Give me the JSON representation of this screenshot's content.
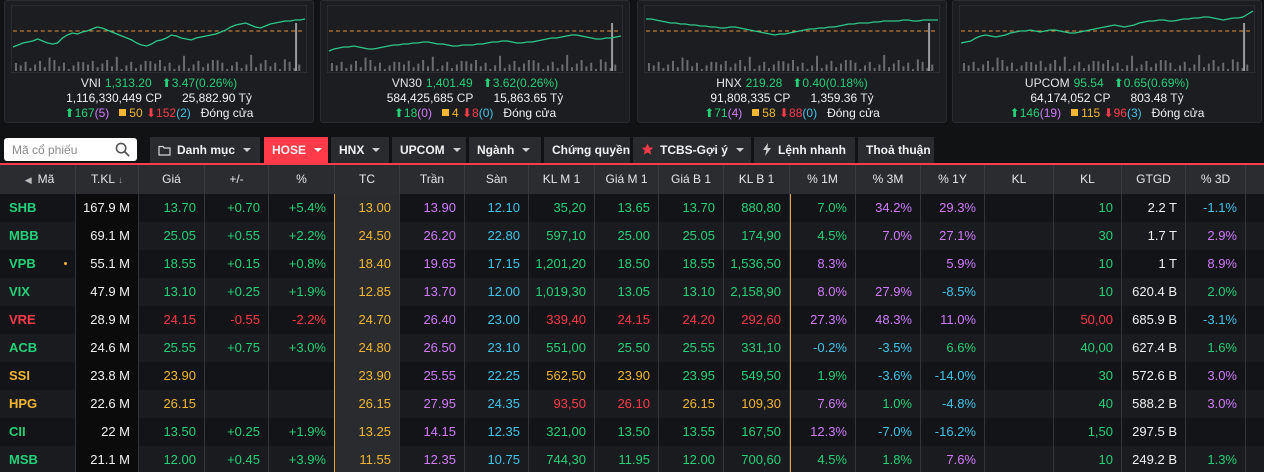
{
  "indexes": [
    {
      "name": "VNI",
      "value": "1,313.20",
      "change": "3.47",
      "pct": "(0.26%)",
      "dir": "up",
      "volume": "1,116,330,449",
      "vol_unit": "CP",
      "turnover": "25,882.90",
      "turn_unit": "Tỷ",
      "up": "167",
      "ceil_up": "(5)",
      "ref": "50",
      "down": "152",
      "floor_down": "(2)",
      "status": "Đóng cửa"
    },
    {
      "name": "VN30",
      "value": "1,401.49",
      "change": "3.62",
      "pct": "(0.26%)",
      "dir": "up",
      "volume": "584,425,685",
      "vol_unit": "CP",
      "turnover": "15,863.65",
      "turn_unit": "Tỷ",
      "up": "18",
      "ceil_up": "(0)",
      "ref": "4",
      "down": "8",
      "floor_down": "(0)",
      "status": "Đóng cửa"
    },
    {
      "name": "HNX",
      "value": "219.28",
      "change": "0.40",
      "pct": "(0.18%)",
      "dir": "up",
      "volume": "91,808,335",
      "vol_unit": "CP",
      "turnover": "1,359.36",
      "turn_unit": "Tỷ",
      "up": "71",
      "ceil_up": "(4)",
      "ref": "58",
      "down": "88",
      "floor_down": "(0)",
      "status": "Đóng cửa"
    },
    {
      "name": "UPCOM",
      "value": "95.54",
      "change": "0.65",
      "pct": "(0.69%)",
      "dir": "up",
      "volume": "64,174,052",
      "vol_unit": "CP",
      "turnover": "803.48",
      "turn_unit": "Tỷ",
      "up": "146",
      "ceil_up": "(19)",
      "ref": "115",
      "down": "96",
      "floor_down": "(3)",
      "status": "Đóng cửa"
    }
  ],
  "search": {
    "placeholder": "Mã cổ phiếu"
  },
  "tabs": [
    {
      "label": "Danh mục",
      "icon": "folder-icon",
      "caret": true
    },
    {
      "label": "HOSE",
      "active": true,
      "caret": true
    },
    {
      "label": "HNX",
      "caret": true
    },
    {
      "label": "UPCOM",
      "caret": true
    },
    {
      "label": "Ngành",
      "caret": true
    },
    {
      "label": "Chứng quyền",
      "caret": false
    },
    {
      "label": "TCBS-Gợi ý",
      "icon": "star-icon",
      "caret": true
    },
    {
      "label": "Lệnh nhanh",
      "icon": "lightning-icon",
      "caret": false
    },
    {
      "label": "Thoả thuận",
      "caret": false
    }
  ],
  "table": {
    "headers": [
      "Mã",
      "T.KL",
      "Giá",
      "+/-",
      "%",
      "TC",
      "Trần",
      "Sàn",
      "KL M 1",
      "Giá M 1",
      "Giá B 1",
      "KL B 1",
      "% 1M",
      "% 3M",
      "% 1Y",
      "KL",
      "KL",
      "GTGD",
      "% 3D"
    ],
    "rows": [
      {
        "sym": "SHB",
        "tkl": "167.9 M",
        "price": "13.70",
        "chg": "+0.70",
        "pct": "+5.4%",
        "tc": "13.00",
        "tran": "13.90",
        "san": "12.10",
        "klm1": "35,20",
        "giam1": "13.65",
        "giab1": "13.70",
        "klb1": "880,80",
        "p1m": "7.0%",
        "p3m": "34.2%",
        "p1y": "29.3%",
        "kl1": "",
        "kl2": "10",
        "gtgd": "2.2 T",
        "p3d": "-1.1%",
        "color": "green",
        "p1mc": "green",
        "p3mc": "ceil",
        "p1yc": "ceil",
        "p3dc": "floor"
      },
      {
        "sym": "MBB",
        "tkl": "69.1 M",
        "price": "25.05",
        "chg": "+0.55",
        "pct": "+2.2%",
        "tc": "24.50",
        "tran": "26.20",
        "san": "22.80",
        "klm1": "597,10",
        "giam1": "25.00",
        "giab1": "25.05",
        "klb1": "174,90",
        "p1m": "4.5%",
        "p3m": "7.0%",
        "p1y": "27.1%",
        "kl1": "",
        "kl2": "30",
        "gtgd": "1.7 T",
        "p3d": "2.9%",
        "color": "green",
        "p1mc": "green",
        "p3mc": "ceil",
        "p1yc": "ceil",
        "p3dc": "ceil"
      },
      {
        "sym": "VPB",
        "tkl": "55.1 M",
        "price": "18.55",
        "chg": "+0.15",
        "pct": "+0.8%",
        "tc": "18.40",
        "tran": "19.65",
        "san": "17.15",
        "klm1": "1,201,20",
        "giam1": "18.50",
        "giab1": "18.55",
        "klb1": "1,536,50",
        "p1m": "8.3%",
        "p3m": "",
        "p1y": "5.9%",
        "kl1": "",
        "kl2": "10",
        "gtgd": "1 T",
        "p3d": "8.9%",
        "color": "green",
        "p1mc": "ceil",
        "p3mc": "ceil",
        "p1yc": "ceil",
        "p3dc": "ceil",
        "dot": true
      },
      {
        "sym": "VIX",
        "tkl": "47.9 M",
        "price": "13.10",
        "chg": "+0.25",
        "pct": "+1.9%",
        "tc": "12.85",
        "tran": "13.70",
        "san": "12.00",
        "klm1": "1,019,30",
        "giam1": "13.05",
        "giab1": "13.10",
        "klb1": "2,158,90",
        "p1m": "8.0%",
        "p3m": "27.9%",
        "p1y": "-8.5%",
        "kl1": "",
        "kl2": "10",
        "gtgd": "620.4 B",
        "p3d": "2.0%",
        "color": "green",
        "p1mc": "ceil",
        "p3mc": "ceil",
        "p1yc": "floor",
        "p3dc": "green"
      },
      {
        "sym": "VRE",
        "tkl": "28.9 M",
        "price": "24.15",
        "chg": "-0.55",
        "pct": "-2.2%",
        "tc": "24.70",
        "tran": "26.40",
        "san": "23.00",
        "klm1": "339,40",
        "giam1": "24.15",
        "giab1": "24.20",
        "klb1": "292,60",
        "p1m": "27.3%",
        "p3m": "48.3%",
        "p1y": "11.0%",
        "kl1": "",
        "kl2": "50,00",
        "gtgd": "685.9 B",
        "p3d": "-3.1%",
        "color": "red",
        "p1mc": "ceil",
        "p3mc": "ceil",
        "p1yc": "ceil",
        "p3dc": "floor"
      },
      {
        "sym": "ACB",
        "tkl": "24.6 M",
        "price": "25.55",
        "chg": "+0.75",
        "pct": "+3.0%",
        "tc": "24.80",
        "tran": "26.50",
        "san": "23.10",
        "klm1": "551,00",
        "giam1": "25.50",
        "giab1": "25.55",
        "klb1": "331,10",
        "p1m": "-0.2%",
        "p3m": "-3.5%",
        "p1y": "6.6%",
        "kl1": "",
        "kl2": "40,00",
        "gtgd": "627.4 B",
        "p3d": "1.6%",
        "color": "green",
        "p1mc": "floor",
        "p3mc": "floor",
        "p1yc": "green",
        "p3dc": "green"
      },
      {
        "sym": "SSI",
        "tkl": "23.8 M",
        "price": "23.90",
        "chg": "",
        "pct": "",
        "tc": "23.90",
        "tran": "25.55",
        "san": "22.25",
        "klm1": "562,50",
        "giam1": "23.90",
        "giab1": "23.95",
        "klb1": "549,50",
        "p1m": "1.9%",
        "p3m": "-3.6%",
        "p1y": "-14.0%",
        "kl1": "",
        "kl2": "30",
        "gtgd": "572.6 B",
        "p3d": "3.0%",
        "color": "yellow",
        "p1mc": "green",
        "p3mc": "floor",
        "p1yc": "floor",
        "p3dc": "ceil",
        "klm1c": "yellow",
        "giam1c": "yellow",
        "giab1c": "green",
        "klb1c": "green"
      },
      {
        "sym": "HPG",
        "tkl": "22.6 M",
        "price": "26.15",
        "chg": "",
        "pct": "",
        "tc": "26.15",
        "tran": "27.95",
        "san": "24.35",
        "klm1": "93,50",
        "giam1": "26.10",
        "giab1": "26.15",
        "klb1": "109,30",
        "p1m": "7.6%",
        "p3m": "1.0%",
        "p1y": "-4.8%",
        "kl1": "",
        "kl2": "40",
        "gtgd": "588.2 B",
        "p3d": "3.0%",
        "color": "yellow",
        "p1mc": "ceil",
        "p3mc": "green",
        "p1yc": "floor",
        "p3dc": "ceil",
        "klm1c": "red",
        "giam1c": "red",
        "giab1c": "yellow",
        "klb1c": "yellow"
      },
      {
        "sym": "CII",
        "tkl": "22 M",
        "price": "13.50",
        "chg": "+0.25",
        "pct": "+1.9%",
        "tc": "13.25",
        "tran": "14.15",
        "san": "12.35",
        "klm1": "321,00",
        "giam1": "13.50",
        "giab1": "13.55",
        "klb1": "167,50",
        "p1m": "12.3%",
        "p3m": "-7.0%",
        "p1y": "-16.2%",
        "kl1": "",
        "kl2": "1,50",
        "gtgd": "297.5 B",
        "p3d": "",
        "color": "green",
        "p1mc": "ceil",
        "p3mc": "floor",
        "p1yc": "floor",
        "p3dc": "green"
      },
      {
        "sym": "MSB",
        "tkl": "21.1 M",
        "price": "12.00",
        "chg": "+0.45",
        "pct": "+3.9%",
        "tc": "11.55",
        "tran": "12.35",
        "san": "10.75",
        "klm1": "744,30",
        "giam1": "11.95",
        "giab1": "12.00",
        "klb1": "700,60",
        "p1m": "4.5%",
        "p3m": "1.8%",
        "p1y": "7.6%",
        "kl1": "",
        "kl2": "10",
        "gtgd": "249.2 B",
        "p3d": "1.3%",
        "color": "green",
        "p1mc": "green",
        "p3mc": "green",
        "p1yc": "ceil",
        "p3dc": "green"
      }
    ]
  },
  "colors": {
    "up": "#25d07a",
    "down": "#ff3b4a",
    "ref": "#f2b632",
    "ceil": "#d17bff",
    "floor": "#41c4e8",
    "accent": "#ff3b4a"
  },
  "sparklines": [
    [
      42,
      40,
      38,
      37,
      36,
      34,
      36,
      38,
      39,
      38,
      33,
      30,
      28,
      29,
      27,
      26,
      24,
      22,
      23,
      25,
      27,
      29,
      31,
      33,
      35,
      38,
      40,
      41,
      39,
      36,
      35,
      33,
      30,
      31,
      33,
      34,
      35,
      33,
      32,
      31,
      30,
      29,
      27,
      25,
      22,
      20,
      19,
      18,
      20,
      22,
      23,
      21,
      19,
      18,
      17,
      16,
      16,
      15,
      15,
      14
    ],
    [
      46,
      44,
      43,
      42,
      42,
      41,
      42,
      43,
      44,
      44,
      43,
      42,
      41,
      40,
      40,
      39,
      39,
      38,
      38,
      37,
      37,
      38,
      39,
      39,
      40,
      41,
      41,
      40,
      40,
      40,
      39,
      39,
      38,
      37,
      37,
      36,
      36,
      37,
      38,
      38,
      37,
      37,
      36,
      35,
      34,
      33,
      33,
      32,
      31,
      30,
      30,
      31,
      32,
      33,
      34,
      34,
      33,
      33,
      32,
      31
    ],
    [
      14,
      14,
      15,
      16,
      17,
      18,
      18,
      19,
      19,
      20,
      20,
      21,
      21,
      22,
      22,
      23,
      23,
      22,
      22,
      23,
      24,
      25,
      26,
      27,
      28,
      29,
      30,
      29,
      29,
      28,
      27,
      26,
      25,
      24,
      24,
      23,
      23,
      22,
      22,
      21,
      20,
      19,
      19,
      18,
      18,
      18,
      17,
      17,
      16,
      16,
      16,
      16,
      15,
      15,
      16,
      16,
      15,
      15,
      15,
      15
    ],
    [
      38,
      37,
      36,
      33,
      31,
      30,
      31,
      32,
      31,
      30,
      28,
      27,
      26,
      26,
      25,
      26,
      27,
      26,
      25,
      25,
      26,
      27,
      28,
      28,
      27,
      26,
      25,
      24,
      23,
      22,
      21,
      20,
      21,
      22,
      21,
      20,
      18,
      17,
      16,
      16,
      15,
      15,
      16,
      16,
      15,
      14,
      14,
      13,
      13,
      12,
      12,
      13,
      14,
      15,
      14,
      13,
      13,
      12,
      9,
      6
    ]
  ]
}
